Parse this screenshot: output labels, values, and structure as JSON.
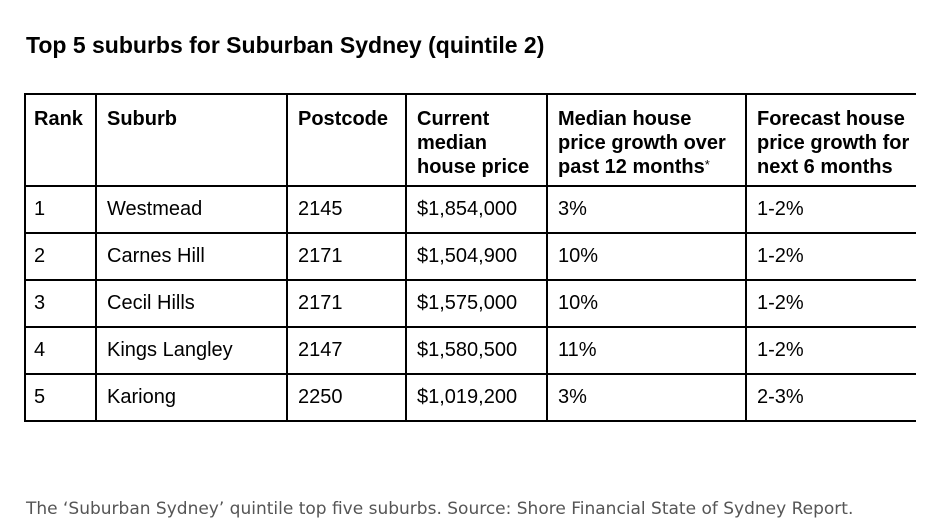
{
  "title": "Top 5 suburbs for Suburban Sydney (quintile 2)",
  "table": {
    "headers": [
      [
        "Rank"
      ],
      [
        "Suburb"
      ],
      [
        "Postcode"
      ],
      [
        "Current",
        "median",
        "house price"
      ],
      [
        "Median house",
        "price growth over",
        "past 12 months"
      ],
      [
        "Forecast house",
        "price growth for",
        "next 6 months"
      ]
    ],
    "footnote_marker": "*",
    "rows": [
      [
        "1",
        "Westmead",
        "2145",
        "$1,854,000",
        "3%",
        "1-2%"
      ],
      [
        "2",
        "Carnes Hill",
        "2171",
        "$1,504,900",
        "10%",
        "1-2%"
      ],
      [
        "3",
        "Cecil Hills",
        "2171",
        "$1,575,000",
        "10%",
        "1-2%"
      ],
      [
        "4",
        "Kings Langley",
        "2147",
        "$1,580,500",
        "11%",
        "1-2%"
      ],
      [
        "5",
        "Kariong",
        "2250",
        "$1,019,200",
        "3%",
        "2-3%"
      ]
    ]
  },
  "caption": "The ‘Suburban Sydney’ quintile top five suburbs. Source: Shore Financial State of Sydney Report."
}
